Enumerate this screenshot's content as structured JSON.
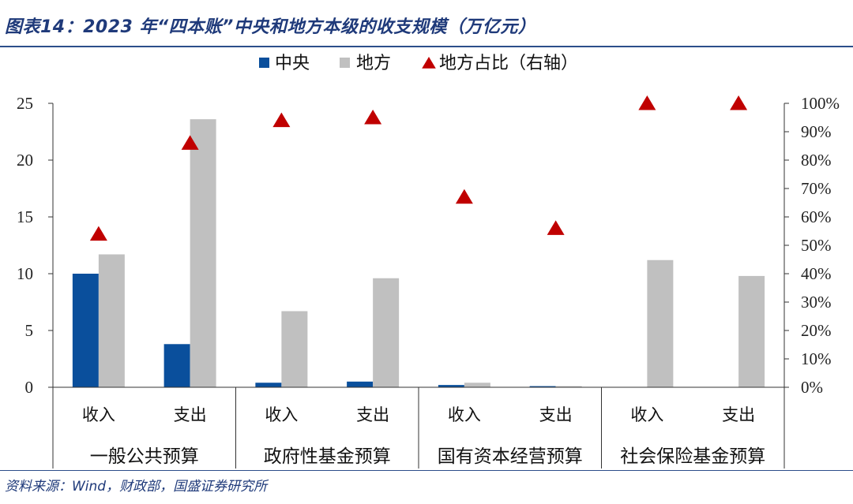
{
  "header": {
    "title": "图表14：2023 年“四本账”中央和地方本级的收支规模（万亿元）"
  },
  "footer": {
    "source": "资料来源：Wind，财政部，国盛证券研究所"
  },
  "colors": {
    "central": "#0a4f9c",
    "local": "#c0c0c0",
    "ratio": "#c00000",
    "title": "#1f3a7a"
  },
  "chart_data": {
    "type": "bar",
    "title": "图表14：2023 年“四本账”中央和地方本级的收支规模（万亿元）",
    "categories": [
      "收入",
      "支出",
      "收入",
      "支出",
      "收入",
      "支出",
      "收入",
      "支出"
    ],
    "groups": [
      "一般公共预算",
      "政府性基金预算",
      "国有资本经营预算",
      "社会保险基金预算"
    ],
    "series": [
      {
        "name": "中央",
        "type": "bar",
        "axis": "left",
        "values": [
          10.0,
          3.8,
          0.4,
          0.5,
          0.2,
          0.1,
          0,
          0
        ]
      },
      {
        "name": "地方",
        "type": "bar",
        "axis": "left",
        "values": [
          11.7,
          23.6,
          6.7,
          9.6,
          0.4,
          0.1,
          11.2,
          9.8
        ]
      },
      {
        "name": "地方占比（右轴）",
        "type": "scatter",
        "marker": "triangle",
        "axis": "right",
        "values": [
          0.54,
          0.86,
          0.94,
          0.95,
          0.67,
          0.56,
          1.0,
          1.0
        ]
      }
    ],
    "ylim": [
      0,
      25
    ],
    "yticks": [
      "0",
      "5",
      "10",
      "15",
      "20",
      "25"
    ],
    "y2lim": [
      0,
      1
    ],
    "y2ticks": [
      "0%",
      "10%",
      "20%",
      "30%",
      "40%",
      "50%",
      "60%",
      "70%",
      "80%",
      "90%",
      "100%"
    ],
    "legend": "top",
    "grid": false
  }
}
